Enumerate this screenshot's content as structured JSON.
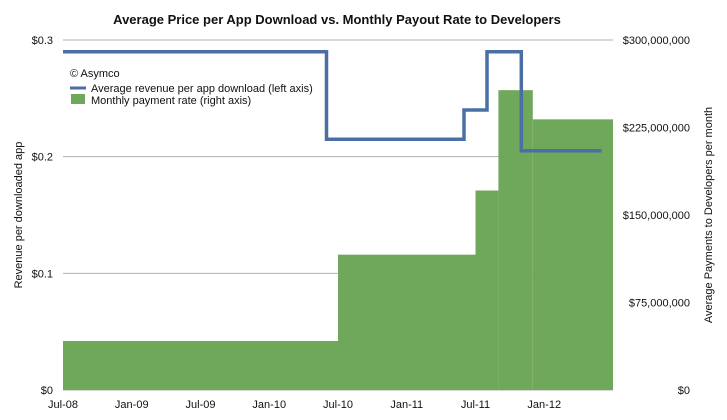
{
  "chart_data": {
    "type": "bar+line",
    "title": "Average Price per App Download vs. Monthly Payout Rate to Developers",
    "copyright": "© Asymco",
    "y_left_label": "Revenue per downloaded app",
    "y_right_label": "Average Payments to Developers per month",
    "y_left_ticks": [
      "$0",
      "$0.1",
      "$0.2",
      "$0.3"
    ],
    "y_right_ticks": [
      "$0",
      "$75,000,000",
      "$150,000,000",
      "$225,000,000",
      "$300,000,000"
    ],
    "y_left_range": [
      0,
      0.3
    ],
    "y_right_range": [
      0,
      300000000
    ],
    "x_ticks": [
      "Jul-08",
      "Jan-09",
      "Jul-09",
      "Jan-10",
      "Jul-10",
      "Jan-11",
      "Jul-11",
      "Jan-12"
    ],
    "x_range": [
      "2008-07",
      "2012-07"
    ],
    "grid": "horizontal",
    "legend_position": "top-left",
    "series": [
      {
        "name": "Average revenue per app download (left axis)",
        "type": "line",
        "axis": "left",
        "color": "#4a6fa5",
        "points": [
          {
            "x": "2008-07",
            "y": 0.29
          },
          {
            "x": "2010-06",
            "y": 0.29
          },
          {
            "x": "2010-06",
            "y": 0.215
          },
          {
            "x": "2011-06",
            "y": 0.215
          },
          {
            "x": "2011-06",
            "y": 0.24
          },
          {
            "x": "2011-08",
            "y": 0.24
          },
          {
            "x": "2011-08",
            "y": 0.29
          },
          {
            "x": "2011-11",
            "y": 0.29
          },
          {
            "x": "2011-11",
            "y": 0.205
          },
          {
            "x": "2012-06",
            "y": 0.205
          }
        ]
      },
      {
        "name": "Monthly payment rate (right axis)",
        "type": "step-area",
        "axis": "right",
        "color": "#6fa85a",
        "steps": [
          {
            "from": "2008-07",
            "to": "2010-07",
            "value": 42000000
          },
          {
            "from": "2010-07",
            "to": "2011-07",
            "value": 116000000
          },
          {
            "from": "2011-07",
            "to": "2011-09",
            "value": 171000000
          },
          {
            "from": "2011-09",
            "to": "2011-12",
            "value": 257000000
          },
          {
            "from": "2011-12",
            "to": "2012-07",
            "value": 232000000
          }
        ]
      }
    ]
  }
}
